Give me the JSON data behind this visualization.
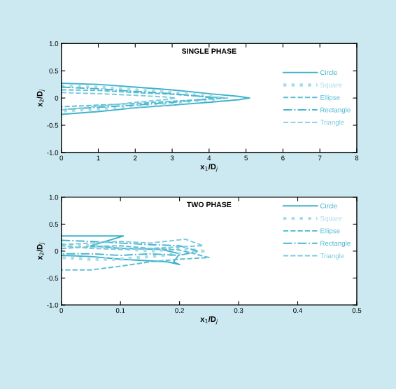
{
  "chart_data": [
    {
      "type": "line",
      "title": "SINGLE PHASE",
      "xlabel": "x$_{1}$/D$_{j}$",
      "ylabel": "x$_{2}$/D$_{j}$",
      "xlim": [
        0,
        8
      ],
      "xticks": [
        0,
        1,
        2,
        3,
        4,
        5,
        6,
        7,
        8
      ],
      "ylim": [
        -1.0,
        1.0
      ],
      "yticks": [
        {
          "value": -1.0,
          "label": "-1.0"
        },
        {
          "value": -0.5,
          "label": "-0.5"
        },
        0,
        0.5,
        {
          "value": 1.0,
          "label": "1.0"
        }
      ],
      "legend": "right",
      "grid": false,
      "series": [
        {
          "name": "Circle",
          "color": "#3fb2cc",
          "line_style": "solid",
          "x": [
            0,
            1,
            2,
            3,
            4,
            4.8,
            5.1,
            4.8,
            4,
            3,
            2,
            1,
            0
          ],
          "values": [
            0.27,
            0.25,
            0.2,
            0.15,
            0.08,
            0.03,
            0,
            -0.03,
            -0.08,
            -0.13,
            -0.18,
            -0.25,
            -0.3
          ]
        },
        {
          "name": "Square",
          "color": "#a8dce8",
          "line_style": "dotted",
          "x": [
            0,
            1,
            2,
            3,
            4,
            4.3,
            4,
            3,
            2,
            1,
            0
          ],
          "values": [
            0.22,
            0.2,
            0.15,
            0.1,
            0.03,
            0,
            -0.04,
            -0.1,
            -0.15,
            -0.2,
            -0.24
          ]
        },
        {
          "name": "Ellipse",
          "color": "#5bbfd4",
          "line_style": "dashed",
          "x": [
            0,
            1,
            2,
            3,
            4,
            4.5,
            4,
            3,
            2,
            1,
            0
          ],
          "values": [
            0.15,
            0.14,
            0.1,
            0.07,
            0.02,
            0,
            -0.02,
            -0.06,
            -0.1,
            -0.13,
            -0.16
          ]
        },
        {
          "name": "Rectangle",
          "color": "#4ab6cf",
          "line_style": "dashdot",
          "x": [
            0,
            1,
            2,
            3,
            3.8,
            4.1,
            3.8,
            3,
            2,
            1,
            0
          ],
          "values": [
            0.2,
            0.17,
            0.12,
            0.08,
            0.03,
            0,
            -0.03,
            -0.08,
            -0.13,
            -0.17,
            -0.21
          ]
        },
        {
          "name": "Triangle",
          "color": "#7ccadc",
          "line_style": "dashed",
          "x": [
            0,
            1,
            2,
            2.8,
            3.1,
            2.8,
            2,
            1,
            0
          ],
          "values": [
            0.1,
            0.08,
            0.05,
            0.02,
            0,
            -0.03,
            -0.08,
            -0.15,
            -0.22
          ]
        }
      ]
    },
    {
      "type": "line",
      "title": "TWO PHASE",
      "xlabel": "x$_{1}$/D$_{j}$",
      "ylabel": "x$_{2}$/D$_{j}$",
      "xlim": [
        0,
        0.5
      ],
      "xticks": [
        0,
        0.1,
        0.2,
        0.3,
        0.4,
        0.5
      ],
      "ylim": [
        -1.0,
        1.0
      ],
      "yticks": [
        {
          "value": -1.0,
          "label": "-1.0"
        },
        {
          "value": -0.5,
          "label": "-0.5"
        },
        0,
        0.5,
        {
          "value": 1.0,
          "label": "1.0"
        }
      ],
      "legend": "top right",
      "grid": false,
      "series": [
        {
          "name": "Circle",
          "color": "#3fb2cc",
          "line_style": "solid",
          "x": [
            0,
            0.05,
            0.105,
            0.05,
            0.1,
            0.17,
            0.2,
            0.19,
            0.2,
            0.18,
            0.1,
            0.05,
            0
          ],
          "values": [
            0.28,
            0.28,
            0.28,
            0.1,
            0.05,
            0.03,
            -0.05,
            -0.2,
            -0.25,
            -0.2,
            -0.15,
            -0.1,
            -0.08
          ]
        },
        {
          "name": "Square",
          "color": "#a8dce8",
          "line_style": "dotted",
          "x": [
            0,
            0.05,
            0.1,
            0.15,
            0.2,
            0.24,
            0.2,
            0.15,
            0.1,
            0.05,
            0
          ],
          "values": [
            0.12,
            0.1,
            0.05,
            0.0,
            0.05,
            0.0,
            -0.05,
            -0.1,
            -0.15,
            -0.15,
            -0.12
          ]
        },
        {
          "name": "Ellipse",
          "color": "#5bbfd4",
          "line_style": "dashed",
          "x": [
            0,
            0.05,
            0.1,
            0.15,
            0.2,
            0.25,
            0.2,
            0.15,
            0.1,
            0.05,
            0
          ],
          "values": [
            0.05,
            0.08,
            0.1,
            0.05,
            0.02,
            -0.12,
            -0.15,
            -0.2,
            -0.28,
            -0.35,
            -0.35
          ]
        },
        {
          "name": "Rectangle",
          "color": "#4ab6cf",
          "line_style": "dashdot",
          "x": [
            0,
            0.05,
            0.1,
            0.15,
            0.2,
            0.23,
            0.2,
            0.15,
            0.1,
            0.05,
            0
          ],
          "values": [
            0.2,
            0.18,
            0.15,
            0.12,
            0.1,
            0.0,
            -0.08,
            -0.05,
            -0.08,
            -0.05,
            -0.05
          ]
        },
        {
          "name": "Triangle",
          "color": "#7ccadc",
          "line_style": "dashed",
          "x": [
            0,
            0.05,
            0.1,
            0.15,
            0.21,
            0.24,
            0.2,
            0.15,
            0.1,
            0.05,
            0
          ],
          "values": [
            0.12,
            0.15,
            0.18,
            0.15,
            0.22,
            0.1,
            0.08,
            0.05,
            0.03,
            0.05,
            0.1
          ]
        }
      ]
    }
  ]
}
